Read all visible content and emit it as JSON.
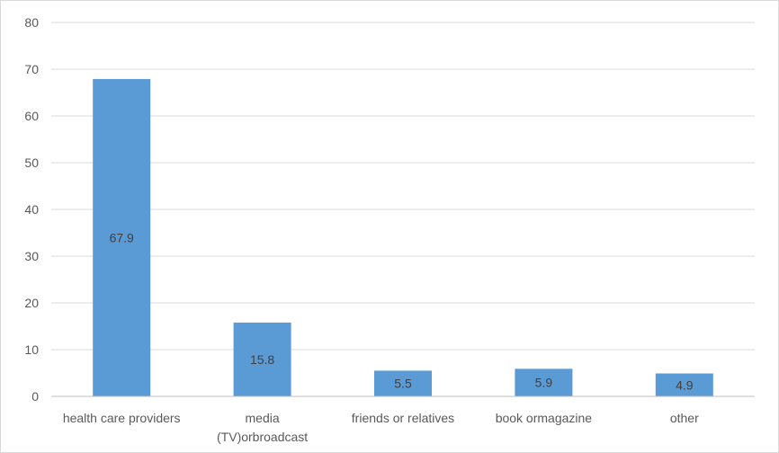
{
  "chart_data": {
    "type": "bar",
    "categories": [
      "health care providers",
      "media (TV)orbroadcast",
      "friends or relatives",
      "book ormagazine",
      "other"
    ],
    "category_lines": [
      [
        "health care providers"
      ],
      [
        "media",
        "(TV)orbroadcast"
      ],
      [
        "friends or relatives"
      ],
      [
        "book ormagazine"
      ],
      [
        "other"
      ]
    ],
    "values": [
      67.9,
      15.8,
      5.5,
      5.9,
      4.9
    ],
    "data_labels": [
      "67.9",
      "15.8",
      "5.5",
      "5.9",
      "4.9"
    ],
    "ylim": [
      0,
      80
    ],
    "yticks": [
      0,
      10,
      20,
      30,
      40,
      50,
      60,
      70,
      80
    ],
    "grid": true,
    "legend": "none",
    "bar_color": "#5b9bd5"
  }
}
